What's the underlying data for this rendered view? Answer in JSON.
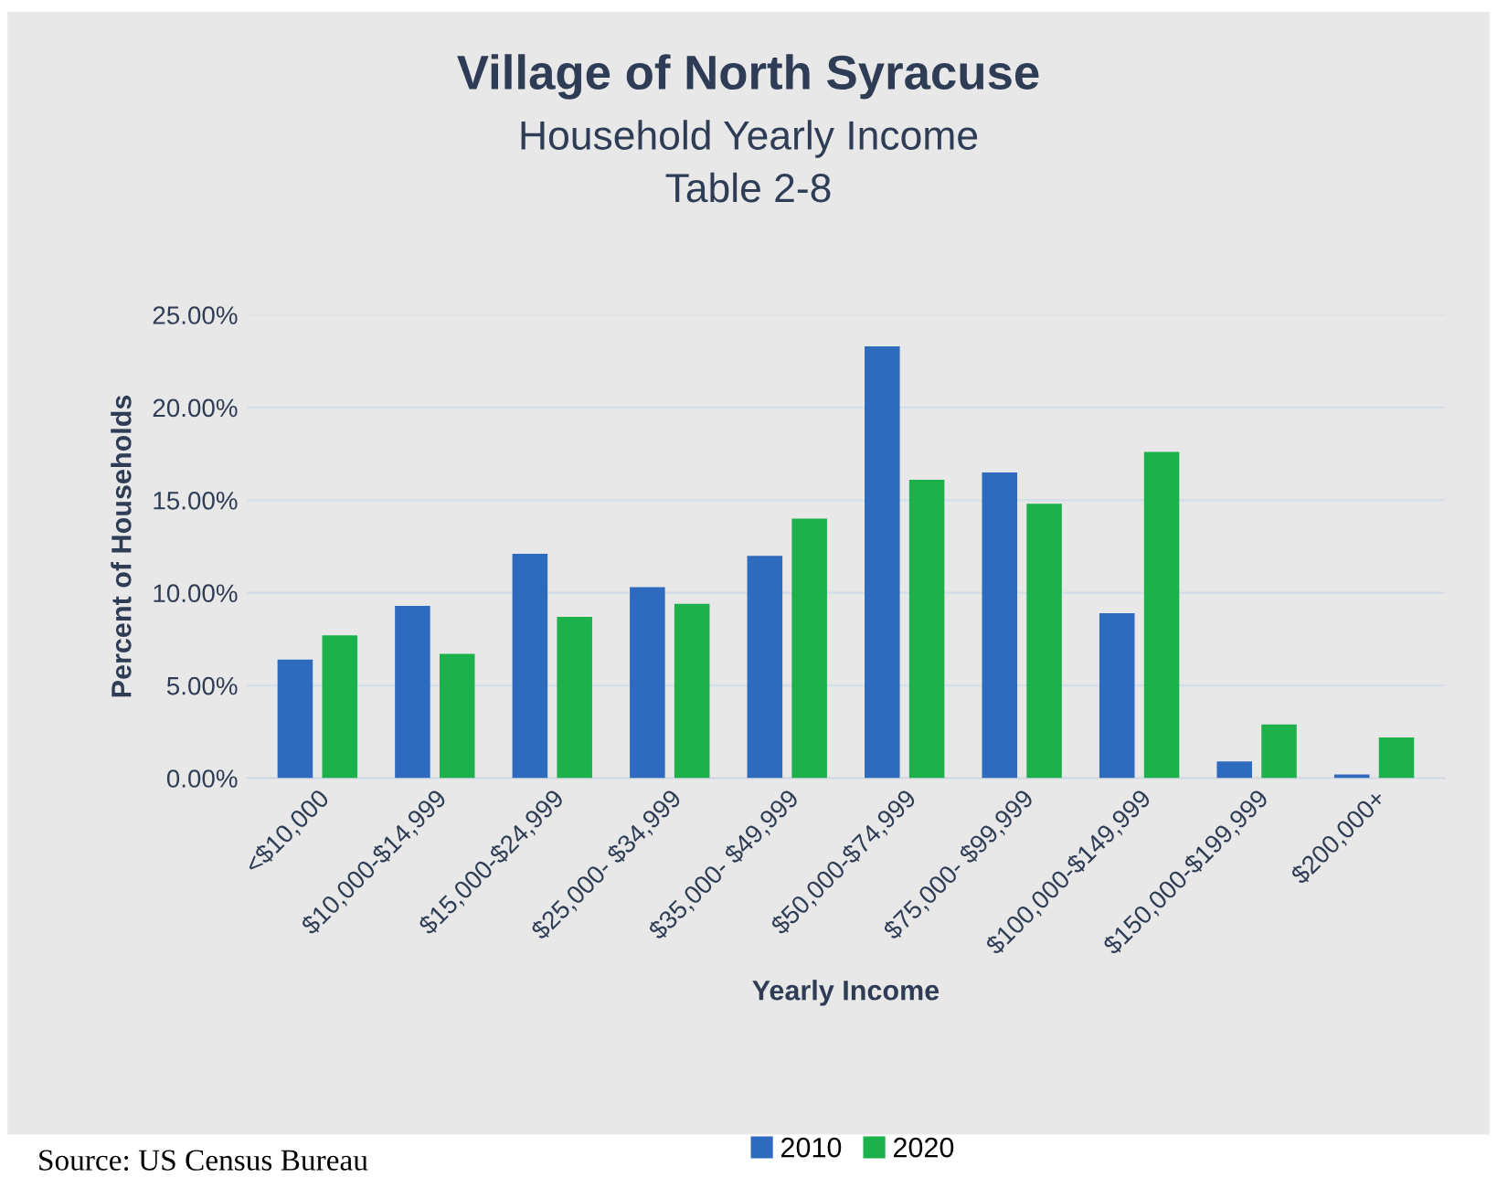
{
  "chart_data": {
    "type": "bar",
    "title": "Village of North Syracuse",
    "subtitle": "Household Yearly Income\nTable 2-8",
    "xlabel": "Yearly Income",
    "ylabel": "Percent of Households",
    "categories": [
      "<$10,000",
      "$10,000-$14,999",
      "$15,000-$24,999",
      "$25,000- $34,999",
      "$35,000- $49,999",
      "$50,000-$74,999",
      "$75,000- $99,999",
      "$100,000-$149,999",
      "$150,000-$199,999",
      "$200,000+"
    ],
    "series": [
      {
        "name": "2010",
        "color": "#2e6bbf",
        "values": [
          6.4,
          9.3,
          12.1,
          10.3,
          12.0,
          23.3,
          16.5,
          8.9,
          0.9,
          0.2
        ]
      },
      {
        "name": "2020",
        "color": "#1db14b",
        "values": [
          7.7,
          6.7,
          8.7,
          9.4,
          14.0,
          16.1,
          14.8,
          17.6,
          2.9,
          2.2
        ]
      }
    ],
    "ylim": [
      0,
      25
    ],
    "yticks": [
      {
        "value": 0,
        "label": "0.00%"
      },
      {
        "value": 5,
        "label": "5.00%"
      },
      {
        "value": 10,
        "label": "10.00%"
      },
      {
        "value": 15,
        "label": "15.00%"
      },
      {
        "value": 20,
        "label": "20.00%"
      },
      {
        "value": 25,
        "label": "25.00%"
      }
    ],
    "grid": "y",
    "legend": "bottom",
    "annotations": [
      "Source: US Census Bureau"
    ]
  }
}
